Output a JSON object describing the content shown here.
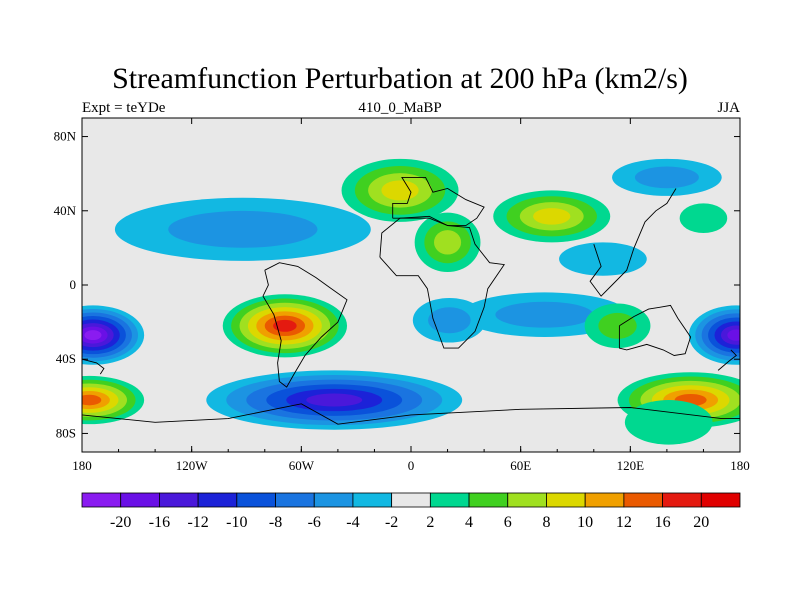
{
  "chart_data": {
    "type": "heatmap",
    "title": "Streamfunction Perturbation at 200 hPa (km2/s)",
    "left_string": "Expt = teYDe",
    "center_string": "410_0_MaBP",
    "right_string": "JJA",
    "x_ticks": [
      {
        "value": -180,
        "label": "180"
      },
      {
        "value": -120,
        "label": "120W"
      },
      {
        "value": -60,
        "label": "60W"
      },
      {
        "value": 0,
        "label": "0"
      },
      {
        "value": 60,
        "label": "60E"
      },
      {
        "value": 120,
        "label": "120E"
      },
      {
        "value": 180,
        "label": "180"
      }
    ],
    "y_ticks": [
      {
        "value": 80,
        "label": "80N"
      },
      {
        "value": 40,
        "label": "40N"
      },
      {
        "value": 0,
        "label": "0"
      },
      {
        "value": -40,
        "label": "40S"
      },
      {
        "value": -80,
        "label": "80S"
      }
    ],
    "xlim": [
      -180,
      180
    ],
    "ylim": [
      -90,
      90
    ],
    "contour_levels": [
      -20,
      -16,
      -12,
      -10,
      -8,
      -6,
      -4,
      -2,
      2,
      4,
      6,
      8,
      10,
      12,
      16,
      20
    ],
    "colorbar_colors": [
      "#8a1cf0",
      "#6a10e6",
      "#4a18da",
      "#1c22d8",
      "#0a52da",
      "#1a74e0",
      "#1c94e2",
      "#12b8e2",
      "#e8e8e8",
      "#00d890",
      "#40d020",
      "#a0e020",
      "#dcd800",
      "#f0a000",
      "#ea5a00",
      "#e41a10",
      "#e00000"
    ],
    "features": [
      {
        "lon": -174,
        "lat": -27,
        "value": -20,
        "rx": 28,
        "ry": 16
      },
      {
        "lon": 178,
        "lat": -27,
        "value": -16,
        "rx": 26,
        "ry": 16
      },
      {
        "lon": -176,
        "lat": -62,
        "value": 14,
        "rx": 30,
        "ry": 13
      },
      {
        "lon": 153,
        "lat": -62,
        "value": 14,
        "rx": 40,
        "ry": 15
      },
      {
        "lon": -69,
        "lat": -22,
        "value": 16,
        "rx": 34,
        "ry": 17
      },
      {
        "lon": -42,
        "lat": -62,
        "value": -12,
        "rx": 70,
        "ry": 16
      },
      {
        "lon": -92,
        "lat": 30,
        "value": -5,
        "rx": 70,
        "ry": 17
      },
      {
        "lon": -6,
        "lat": 51,
        "value": 8,
        "rx": 32,
        "ry": 17
      },
      {
        "lon": 20,
        "lat": 23,
        "value": 6,
        "rx": 18,
        "ry": 16
      },
      {
        "lon": 77,
        "lat": 37,
        "value": 8,
        "rx": 32,
        "ry": 14
      },
      {
        "lon": 140,
        "lat": 58,
        "value": -4,
        "rx": 30,
        "ry": 10
      },
      {
        "lon": 160,
        "lat": 36,
        "value": 3,
        "rx": 13,
        "ry": 8
      },
      {
        "lon": 105,
        "lat": 14,
        "value": -3,
        "rx": 24,
        "ry": 9
      },
      {
        "lon": 73,
        "lat": -16,
        "value": -4,
        "rx": 46,
        "ry": 12
      },
      {
        "lon": 21,
        "lat": -19,
        "value": -4,
        "rx": 20,
        "ry": 12
      },
      {
        "lon": 113,
        "lat": -22,
        "value": 4,
        "rx": 18,
        "ry": 12
      },
      {
        "lon": 141,
        "lat": -74,
        "value": 3,
        "rx": 24,
        "ry": 12
      }
    ]
  }
}
